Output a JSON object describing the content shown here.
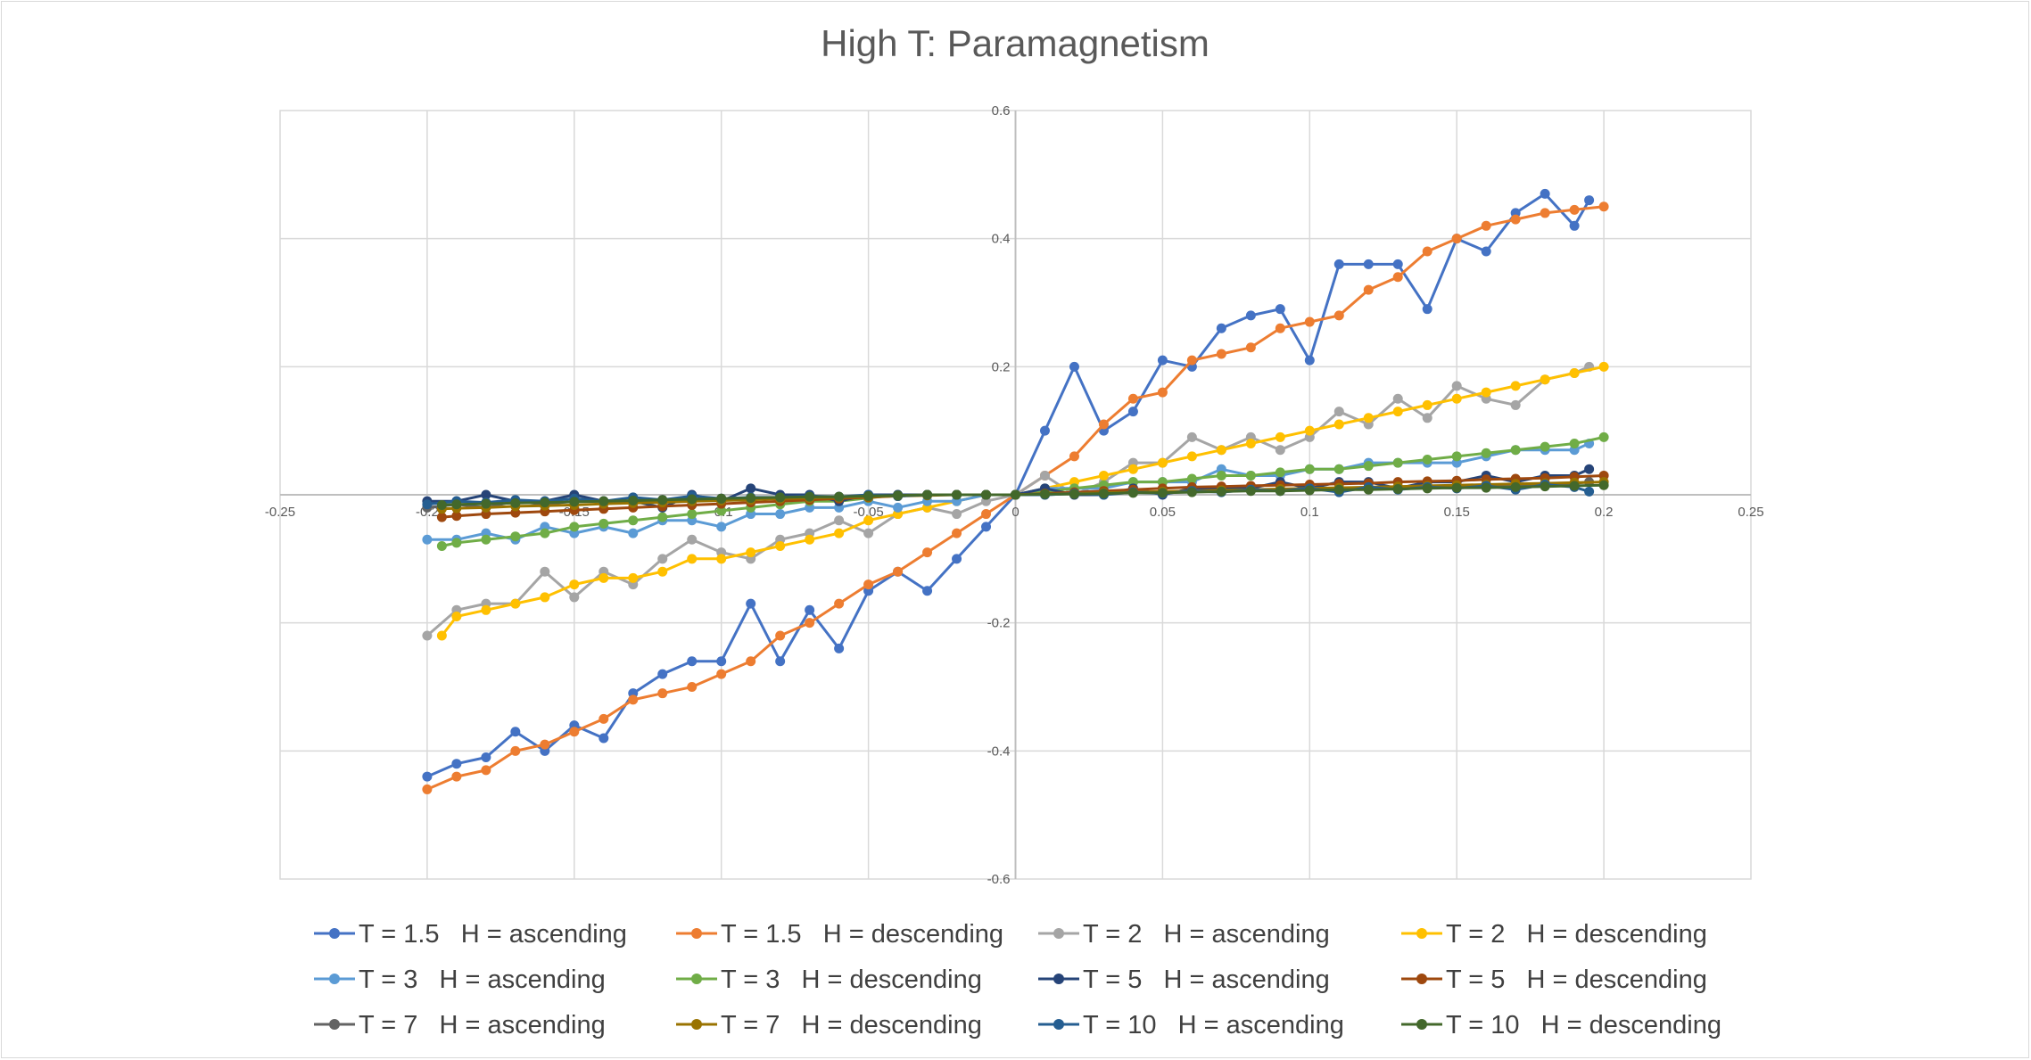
{
  "chart_data": {
    "type": "scatter",
    "title": "High T: Paramagnetism",
    "xlabel": "",
    "ylabel": "",
    "xlim": [
      -0.25,
      0.25
    ],
    "ylim": [
      -0.6,
      0.6
    ],
    "x_ticks": [
      -0.25,
      -0.2,
      -0.15,
      -0.1,
      -0.05,
      0,
      0.05,
      0.1,
      0.15,
      0.2,
      0.25
    ],
    "x_tick_labels": [
      "-0.25",
      "-0.2",
      "-0.15",
      "-0.1",
      "-0.05",
      "0",
      "0.05",
      "0.1",
      "0.15",
      "0.2",
      "0.25"
    ],
    "y_ticks": [
      -0.6,
      -0.4,
      -0.2,
      0,
      0.2,
      0.4,
      0.6
    ],
    "y_tick_labels": [
      "-0.6",
      "-0.4",
      "-0.2",
      "",
      "0.2",
      "0.4",
      "0.6"
    ],
    "grid": true,
    "legend_position": "bottom",
    "series": [
      {
        "name": "T = 1.5   H = ascending",
        "color": "#4472C4",
        "x": [
          -0.2,
          -0.19,
          -0.18,
          -0.17,
          -0.16,
          -0.15,
          -0.14,
          -0.13,
          -0.12,
          -0.11,
          -0.1,
          -0.09,
          -0.08,
          -0.07,
          -0.06,
          -0.05,
          -0.04,
          -0.03,
          -0.02,
          -0.01,
          0,
          0.01,
          0.02,
          0.03,
          0.04,
          0.05,
          0.06,
          0.07,
          0.08,
          0.09,
          0.1,
          0.11,
          0.12,
          0.13,
          0.14,
          0.15,
          0.16,
          0.17,
          0.18,
          0.19,
          0.195
        ],
        "y": [
          -0.44,
          -0.42,
          -0.41,
          -0.37,
          -0.4,
          -0.36,
          -0.38,
          -0.31,
          -0.28,
          -0.26,
          -0.26,
          -0.17,
          -0.26,
          -0.18,
          -0.24,
          -0.15,
          -0.12,
          -0.15,
          -0.1,
          -0.05,
          0.0,
          0.1,
          0.2,
          0.1,
          0.13,
          0.21,
          0.2,
          0.26,
          0.28,
          0.29,
          0.21,
          0.36,
          0.36,
          0.36,
          0.29,
          0.4,
          0.38,
          0.44,
          0.47,
          0.42,
          0.46
        ]
      },
      {
        "name": "T = 1.5   H = descending",
        "color": "#ED7D31",
        "x": [
          -0.2,
          -0.19,
          -0.18,
          -0.17,
          -0.16,
          -0.15,
          -0.14,
          -0.13,
          -0.12,
          -0.11,
          -0.1,
          -0.09,
          -0.08,
          -0.07,
          -0.06,
          -0.05,
          -0.04,
          -0.03,
          -0.02,
          -0.01,
          0,
          0.01,
          0.02,
          0.03,
          0.04,
          0.05,
          0.06,
          0.07,
          0.08,
          0.09,
          0.1,
          0.11,
          0.12,
          0.13,
          0.14,
          0.15,
          0.16,
          0.17,
          0.18,
          0.19,
          0.2
        ],
        "y": [
          -0.46,
          -0.44,
          -0.43,
          -0.4,
          -0.39,
          -0.37,
          -0.35,
          -0.32,
          -0.31,
          -0.3,
          -0.28,
          -0.26,
          -0.22,
          -0.2,
          -0.17,
          -0.14,
          -0.12,
          -0.09,
          -0.06,
          -0.03,
          0.0,
          0.03,
          0.06,
          0.11,
          0.15,
          0.16,
          0.21,
          0.22,
          0.23,
          0.26,
          0.27,
          0.28,
          0.32,
          0.34,
          0.38,
          0.4,
          0.42,
          0.43,
          0.44,
          0.445,
          0.45
        ]
      },
      {
        "name": "T = 2   H = ascending",
        "color": "#A5A5A5",
        "x": [
          -0.2,
          -0.19,
          -0.18,
          -0.17,
          -0.16,
          -0.15,
          -0.14,
          -0.13,
          -0.12,
          -0.11,
          -0.1,
          -0.09,
          -0.08,
          -0.07,
          -0.06,
          -0.05,
          -0.04,
          -0.03,
          -0.02,
          -0.01,
          0,
          0.01,
          0.02,
          0.03,
          0.04,
          0.05,
          0.06,
          0.07,
          0.08,
          0.09,
          0.1,
          0.11,
          0.12,
          0.13,
          0.14,
          0.15,
          0.16,
          0.17,
          0.18,
          0.19,
          0.195
        ],
        "y": [
          -0.22,
          -0.18,
          -0.17,
          -0.17,
          -0.12,
          -0.16,
          -0.12,
          -0.14,
          -0.1,
          -0.07,
          -0.09,
          -0.1,
          -0.07,
          -0.06,
          -0.04,
          -0.06,
          -0.03,
          -0.02,
          -0.03,
          -0.01,
          0.0,
          0.03,
          0.0,
          0.02,
          0.05,
          0.05,
          0.09,
          0.07,
          0.09,
          0.07,
          0.09,
          0.13,
          0.11,
          0.15,
          0.12,
          0.17,
          0.15,
          0.14,
          0.18,
          0.19,
          0.2
        ]
      },
      {
        "name": "T = 2   H = descending",
        "color": "#FFC000",
        "x": [
          -0.195,
          -0.19,
          -0.18,
          -0.17,
          -0.16,
          -0.15,
          -0.14,
          -0.13,
          -0.12,
          -0.11,
          -0.1,
          -0.09,
          -0.08,
          -0.07,
          -0.06,
          -0.05,
          -0.04,
          -0.03,
          -0.02,
          -0.01,
          0,
          0.01,
          0.02,
          0.03,
          0.04,
          0.05,
          0.06,
          0.07,
          0.08,
          0.09,
          0.1,
          0.11,
          0.12,
          0.13,
          0.14,
          0.15,
          0.16,
          0.17,
          0.18,
          0.19,
          0.2
        ],
        "y": [
          -0.22,
          -0.19,
          -0.18,
          -0.17,
          -0.16,
          -0.14,
          -0.13,
          -0.13,
          -0.12,
          -0.1,
          -0.1,
          -0.09,
          -0.08,
          -0.07,
          -0.06,
          -0.04,
          -0.03,
          -0.02,
          -0.01,
          0.0,
          0.0,
          0.01,
          0.02,
          0.03,
          0.04,
          0.05,
          0.06,
          0.07,
          0.08,
          0.09,
          0.1,
          0.11,
          0.12,
          0.13,
          0.14,
          0.15,
          0.16,
          0.17,
          0.18,
          0.19,
          0.2
        ]
      },
      {
        "name": "T = 3   H = ascending",
        "color": "#5B9BD5",
        "x": [
          -0.2,
          -0.19,
          -0.18,
          -0.17,
          -0.16,
          -0.15,
          -0.14,
          -0.13,
          -0.12,
          -0.11,
          -0.1,
          -0.09,
          -0.08,
          -0.07,
          -0.06,
          -0.05,
          -0.04,
          -0.03,
          -0.02,
          -0.01,
          0,
          0.01,
          0.02,
          0.03,
          0.04,
          0.05,
          0.06,
          0.07,
          0.08,
          0.09,
          0.1,
          0.11,
          0.12,
          0.13,
          0.14,
          0.15,
          0.16,
          0.17,
          0.18,
          0.19,
          0.195
        ],
        "y": [
          -0.07,
          -0.07,
          -0.06,
          -0.07,
          -0.05,
          -0.06,
          -0.05,
          -0.06,
          -0.04,
          -0.04,
          -0.05,
          -0.03,
          -0.03,
          -0.02,
          -0.02,
          -0.01,
          -0.02,
          -0.01,
          -0.01,
          0.0,
          0.0,
          0.01,
          0.01,
          0.01,
          0.02,
          0.02,
          0.02,
          0.04,
          0.03,
          0.03,
          0.04,
          0.04,
          0.05,
          0.05,
          0.05,
          0.05,
          0.06,
          0.07,
          0.07,
          0.07,
          0.08
        ]
      },
      {
        "name": "T = 3   H = descending",
        "color": "#70AD47",
        "x": [
          -0.195,
          -0.19,
          -0.18,
          -0.17,
          -0.16,
          -0.15,
          -0.14,
          -0.13,
          -0.12,
          -0.11,
          -0.1,
          -0.09,
          -0.08,
          -0.07,
          -0.06,
          -0.05,
          -0.04,
          -0.03,
          -0.02,
          -0.01,
          0,
          0.01,
          0.02,
          0.03,
          0.04,
          0.05,
          0.06,
          0.07,
          0.08,
          0.09,
          0.1,
          0.11,
          0.12,
          0.13,
          0.14,
          0.15,
          0.16,
          0.17,
          0.18,
          0.19,
          0.2
        ],
        "y": [
          -0.08,
          -0.075,
          -0.07,
          -0.065,
          -0.06,
          -0.05,
          -0.045,
          -0.04,
          -0.035,
          -0.03,
          -0.025,
          -0.02,
          -0.015,
          -0.01,
          -0.01,
          -0.005,
          0.0,
          0.0,
          0.0,
          0.0,
          0.0,
          0.005,
          0.01,
          0.015,
          0.02,
          0.02,
          0.025,
          0.03,
          0.03,
          0.035,
          0.04,
          0.04,
          0.045,
          0.05,
          0.055,
          0.06,
          0.065,
          0.07,
          0.075,
          0.08,
          0.09
        ]
      },
      {
        "name": "T = 5   H = ascending",
        "color": "#264478",
        "x": [
          -0.2,
          -0.19,
          -0.18,
          -0.17,
          -0.16,
          -0.15,
          -0.14,
          -0.13,
          -0.12,
          -0.11,
          -0.1,
          -0.09,
          -0.08,
          -0.07,
          -0.06,
          -0.05,
          -0.04,
          -0.03,
          -0.02,
          -0.01,
          0,
          0.01,
          0.02,
          0.03,
          0.04,
          0.05,
          0.06,
          0.07,
          0.08,
          0.09,
          0.1,
          0.11,
          0.12,
          0.13,
          0.14,
          0.15,
          0.16,
          0.17,
          0.18,
          0.19,
          0.195
        ],
        "y": [
          -0.01,
          -0.01,
          0.0,
          -0.01,
          -0.01,
          0.0,
          -0.01,
          -0.01,
          -0.02,
          0.0,
          -0.01,
          0.01,
          0.0,
          0.0,
          -0.01,
          0.0,
          0.0,
          0.0,
          0.0,
          0.0,
          0.0,
          0.01,
          0.0,
          0.0,
          0.01,
          0.0,
          0.01,
          0.01,
          0.01,
          0.02,
          0.01,
          0.02,
          0.02,
          0.01,
          0.02,
          0.02,
          0.03,
          0.02,
          0.03,
          0.03,
          0.04
        ]
      },
      {
        "name": "T = 5   H = descending",
        "color": "#9E480E",
        "x": [
          -0.195,
          -0.19,
          -0.18,
          -0.17,
          -0.16,
          -0.15,
          -0.14,
          -0.13,
          -0.12,
          -0.11,
          -0.1,
          -0.09,
          -0.08,
          -0.07,
          -0.06,
          -0.05,
          -0.04,
          -0.03,
          -0.02,
          -0.01,
          0,
          0.01,
          0.02,
          0.03,
          0.04,
          0.05,
          0.06,
          0.07,
          0.08,
          0.09,
          0.1,
          0.11,
          0.12,
          0.13,
          0.14,
          0.15,
          0.16,
          0.17,
          0.18,
          0.19,
          0.2
        ],
        "y": [
          -0.035,
          -0.033,
          -0.03,
          -0.028,
          -0.026,
          -0.024,
          -0.022,
          -0.02,
          -0.018,
          -0.016,
          -0.014,
          -0.012,
          -0.01,
          -0.008,
          -0.006,
          -0.004,
          -0.002,
          0.0,
          0.0,
          0.0,
          0.0,
          0.002,
          0.004,
          0.006,
          0.008,
          0.01,
          0.012,
          0.013,
          0.014,
          0.015,
          0.016,
          0.017,
          0.018,
          0.02,
          0.021,
          0.022,
          0.024,
          0.025,
          0.026,
          0.028,
          0.03
        ]
      },
      {
        "name": "T = 7   H = ascending",
        "color": "#636363",
        "x": [
          -0.2,
          -0.19,
          -0.18,
          -0.17,
          -0.16,
          -0.15,
          -0.14,
          -0.13,
          -0.12,
          -0.11,
          -0.1,
          -0.09,
          -0.08,
          -0.07,
          -0.06,
          -0.05,
          -0.04,
          -0.03,
          -0.02,
          -0.01,
          0,
          0.01,
          0.02,
          0.03,
          0.04,
          0.05,
          0.06,
          0.07,
          0.08,
          0.09,
          0.1,
          0.11,
          0.12,
          0.13,
          0.14,
          0.15,
          0.16,
          0.17,
          0.18,
          0.19,
          0.195
        ],
        "y": [
          -0.02,
          -0.015,
          -0.02,
          -0.01,
          -0.015,
          -0.01,
          -0.01,
          -0.012,
          -0.008,
          -0.01,
          -0.006,
          -0.008,
          -0.004,
          -0.005,
          -0.003,
          -0.002,
          -0.002,
          0.0,
          0.0,
          0.0,
          0.0,
          0.0,
          0.002,
          0.003,
          0.004,
          0.005,
          0.005,
          0.006,
          0.008,
          0.008,
          0.01,
          0.01,
          0.01,
          0.012,
          0.012,
          0.014,
          0.014,
          0.016,
          0.016,
          0.018,
          0.02
        ]
      },
      {
        "name": "T = 7   H = descending",
        "color": "#997300",
        "x": [
          -0.195,
          -0.19,
          -0.18,
          -0.17,
          -0.16,
          -0.15,
          -0.14,
          -0.13,
          -0.12,
          -0.11,
          -0.1,
          -0.09,
          -0.08,
          -0.07,
          -0.06,
          -0.05,
          -0.04,
          -0.03,
          -0.02,
          -0.01,
          0,
          0.01,
          0.02,
          0.03,
          0.04,
          0.05,
          0.06,
          0.07,
          0.08,
          0.09,
          0.1,
          0.11,
          0.12,
          0.13,
          0.14,
          0.15,
          0.16,
          0.17,
          0.18,
          0.19,
          0.2
        ],
        "y": [
          -0.022,
          -0.021,
          -0.02,
          -0.018,
          -0.017,
          -0.016,
          -0.014,
          -0.013,
          -0.012,
          -0.01,
          -0.009,
          -0.008,
          -0.006,
          -0.005,
          -0.004,
          -0.003,
          -0.002,
          -0.001,
          0.0,
          0.0,
          0.0,
          0.001,
          0.002,
          0.003,
          0.004,
          0.005,
          0.006,
          0.007,
          0.008,
          0.009,
          0.01,
          0.011,
          0.012,
          0.013,
          0.014,
          0.015,
          0.016,
          0.017,
          0.018,
          0.019,
          0.02
        ]
      },
      {
        "name": "T = 10   H = ascending",
        "color": "#255E91",
        "x": [
          -0.2,
          -0.19,
          -0.18,
          -0.17,
          -0.16,
          -0.15,
          -0.14,
          -0.13,
          -0.12,
          -0.11,
          -0.1,
          -0.09,
          -0.08,
          -0.07,
          -0.06,
          -0.05,
          -0.04,
          -0.03,
          -0.02,
          -0.01,
          0,
          0.01,
          0.02,
          0.03,
          0.04,
          0.05,
          0.06,
          0.07,
          0.08,
          0.09,
          0.1,
          0.11,
          0.12,
          0.13,
          0.14,
          0.15,
          0.16,
          0.17,
          0.18,
          0.19,
          0.195
        ],
        "y": [
          -0.015,
          -0.01,
          -0.012,
          -0.008,
          -0.01,
          -0.006,
          -0.01,
          -0.004,
          -0.008,
          -0.002,
          -0.006,
          -0.004,
          -0.004,
          -0.002,
          -0.003,
          0.0,
          -0.002,
          0.0,
          0.0,
          0.0,
          0.0,
          0.0,
          0.002,
          0.0,
          0.004,
          0.002,
          0.006,
          0.004,
          0.008,
          0.006,
          0.01,
          0.004,
          0.012,
          0.008,
          0.012,
          0.01,
          0.014,
          0.008,
          0.016,
          0.012,
          0.005
        ]
      },
      {
        "name": "T = 10   H = descending",
        "color": "#43682B",
        "x": [
          -0.195,
          -0.19,
          -0.18,
          -0.17,
          -0.16,
          -0.15,
          -0.14,
          -0.13,
          -0.12,
          -0.11,
          -0.1,
          -0.09,
          -0.08,
          -0.07,
          -0.06,
          -0.05,
          -0.04,
          -0.03,
          -0.02,
          -0.01,
          0,
          0.01,
          0.02,
          0.03,
          0.04,
          0.05,
          0.06,
          0.07,
          0.08,
          0.09,
          0.1,
          0.11,
          0.12,
          0.13,
          0.14,
          0.15,
          0.16,
          0.17,
          0.18,
          0.19,
          0.2
        ],
        "y": [
          -0.016,
          -0.015,
          -0.014,
          -0.013,
          -0.012,
          -0.011,
          -0.01,
          -0.009,
          -0.008,
          -0.007,
          -0.006,
          -0.005,
          -0.004,
          -0.003,
          -0.003,
          -0.002,
          -0.001,
          0.0,
          0.0,
          0.0,
          0.0,
          0.001,
          0.001,
          0.002,
          0.003,
          0.003,
          0.004,
          0.005,
          0.006,
          0.006,
          0.007,
          0.008,
          0.008,
          0.009,
          0.01,
          0.011,
          0.011,
          0.012,
          0.013,
          0.014,
          0.015
        ]
      }
    ]
  }
}
